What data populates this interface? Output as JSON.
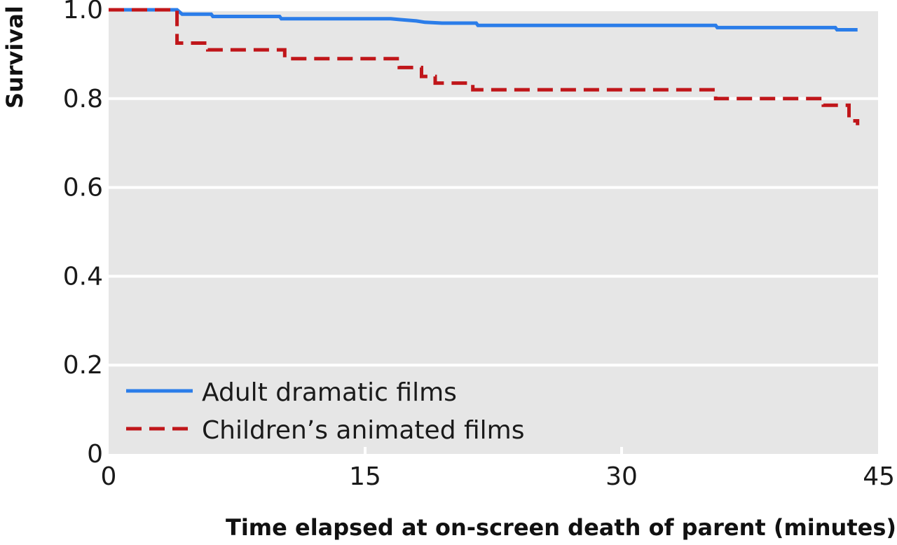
{
  "chart_data": {
    "type": "line",
    "subtype": "step",
    "title": "",
    "xlabel": "Time elapsed at on-screen death of parent (minutes)",
    "ylabel": "Survival",
    "xlim": [
      0,
      45
    ],
    "ylim": [
      0,
      1.0
    ],
    "x_ticks": [
      0,
      15,
      30,
      45
    ],
    "x_tick_labels": [
      "0",
      "15",
      "30",
      "45"
    ],
    "y_ticks": [
      0,
      0.2,
      0.4,
      0.6,
      0.8,
      1.0
    ],
    "y_tick_labels": [
      "0",
      "0.2",
      "0.4",
      "0.6",
      "0.8",
      "1.0"
    ],
    "grid": "horizontal",
    "background": "#e6e6e6",
    "legend_position": "bottom-left",
    "series": [
      {
        "name": "Adult dramatic films",
        "color": "#2b7de9",
        "style": "solid",
        "points": [
          [
            0,
            1.0
          ],
          [
            4.0,
            1.0
          ],
          [
            4.3,
            0.99
          ],
          [
            6.0,
            0.99
          ],
          [
            6.1,
            0.985
          ],
          [
            10.0,
            0.985
          ],
          [
            10.1,
            0.98
          ],
          [
            16.5,
            0.98
          ],
          [
            17.0,
            0.978
          ],
          [
            18.0,
            0.975
          ],
          [
            18.5,
            0.972
          ],
          [
            19.5,
            0.97
          ],
          [
            21.5,
            0.97
          ],
          [
            21.6,
            0.965
          ],
          [
            35.5,
            0.965
          ],
          [
            35.6,
            0.96
          ],
          [
            42.5,
            0.96
          ],
          [
            42.6,
            0.955
          ],
          [
            43.8,
            0.955
          ]
        ]
      },
      {
        "name": "Children’s animated films",
        "color": "#c0161a",
        "style": "dashed",
        "points": [
          [
            0,
            1.0
          ],
          [
            4.0,
            1.0
          ],
          [
            4.0,
            0.925
          ],
          [
            5.8,
            0.925
          ],
          [
            5.8,
            0.91
          ],
          [
            10.3,
            0.91
          ],
          [
            10.3,
            0.89
          ],
          [
            17.0,
            0.89
          ],
          [
            17.0,
            0.87
          ],
          [
            18.3,
            0.87
          ],
          [
            18.3,
            0.85
          ],
          [
            19.1,
            0.85
          ],
          [
            19.1,
            0.835
          ],
          [
            21.3,
            0.835
          ],
          [
            21.3,
            0.82
          ],
          [
            35.5,
            0.82
          ],
          [
            35.5,
            0.8
          ],
          [
            41.8,
            0.8
          ],
          [
            41.8,
            0.785
          ],
          [
            43.3,
            0.785
          ],
          [
            43.3,
            0.75
          ],
          [
            43.8,
            0.75
          ],
          [
            43.8,
            0.74
          ]
        ]
      }
    ]
  }
}
